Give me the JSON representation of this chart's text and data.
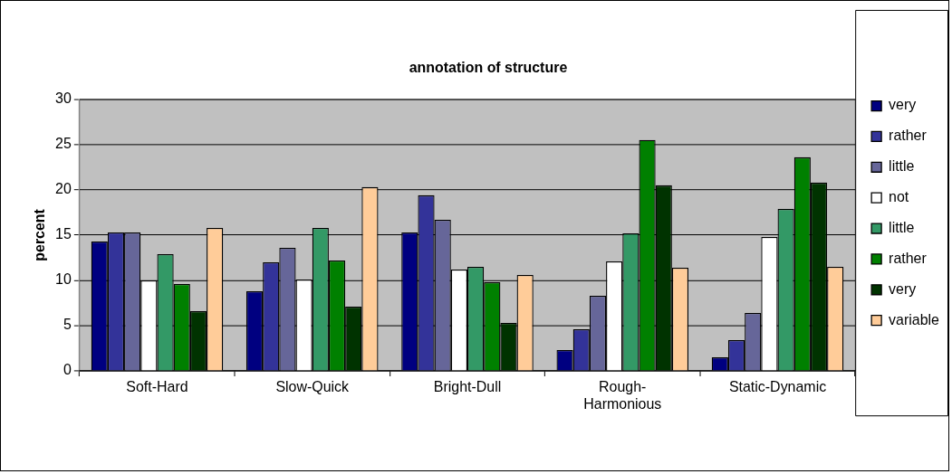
{
  "chart_data": {
    "type": "bar",
    "title": "annotation of structure",
    "ylabel": "percent",
    "categories": [
      "Soft-Hard",
      "Slow-Quick",
      "Bright-Dull",
      "Rough-Harmonious",
      "Static-Dynamic"
    ],
    "series": [
      {
        "name": "very",
        "color": "#000080",
        "values": [
          14.3,
          8.8,
          15.3,
          2.3,
          1.5
        ]
      },
      {
        "name": "rather",
        "color": "#333399",
        "values": [
          15.3,
          12.0,
          19.4,
          4.6,
          3.4
        ]
      },
      {
        "name": "little",
        "color": "#666699",
        "values": [
          15.3,
          13.6,
          16.7,
          8.3,
          6.4
        ]
      },
      {
        "name": "not",
        "color": "#ffffff",
        "values": [
          10.0,
          10.1,
          11.2,
          12.1,
          14.8
        ]
      },
      {
        "name": "little",
        "color": "#339966",
        "values": [
          12.9,
          15.8,
          11.5,
          15.2,
          17.9
        ]
      },
      {
        "name": "rather",
        "color": "#008000",
        "values": [
          9.6,
          12.2,
          9.8,
          25.5,
          23.6
        ]
      },
      {
        "name": "very",
        "color": "#003300",
        "values": [
          6.6,
          7.1,
          5.3,
          20.5,
          20.8
        ]
      },
      {
        "name": "variable",
        "color": "#ffcc99",
        "values": [
          15.8,
          20.3,
          10.6,
          11.4,
          11.5
        ]
      }
    ],
    "ylim": [
      0,
      30
    ],
    "yticks": [
      0,
      5,
      10,
      15,
      20,
      25,
      30
    ],
    "grid": "y",
    "legend": "right"
  }
}
